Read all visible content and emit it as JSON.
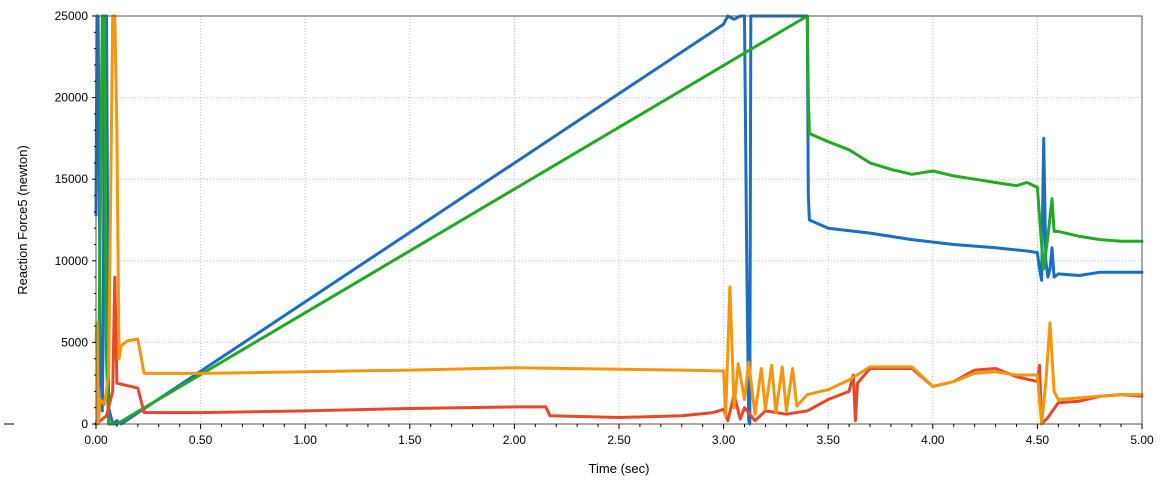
{
  "chart_data": {
    "type": "line",
    "xlabel": "Time (sec)",
    "ylabel": "Reaction Force5 (newton)",
    "xlim": [
      0,
      5
    ],
    "ylim": [
      0,
      25000
    ],
    "xticks": [
      "0.00",
      "0.50",
      "1.00",
      "1.50",
      "2.00",
      "2.50",
      "3.00",
      "3.50",
      "4.00",
      "4.50",
      "5.00"
    ],
    "yticks": [
      "0",
      "5000",
      "10000",
      "15000",
      "20000",
      "25000"
    ],
    "grid": true,
    "legend": "none",
    "series": [
      {
        "color": "#1a6fc4",
        "points": [
          [
            0.0,
            12800
          ],
          [
            0.005,
            25000
          ],
          [
            0.01,
            25000
          ],
          [
            0.015,
            17000
          ],
          [
            0.02,
            5000
          ],
          [
            0.03,
            800
          ],
          [
            0.035,
            6000
          ],
          [
            0.04,
            25000
          ],
          [
            0.05,
            25000
          ],
          [
            0.06,
            1000
          ],
          [
            0.08,
            0
          ],
          [
            0.1,
            200
          ],
          [
            0.12,
            0
          ],
          [
            3.0,
            24500
          ],
          [
            3.02,
            25000
          ],
          [
            3.05,
            24800
          ],
          [
            3.08,
            25000
          ],
          [
            3.1,
            25000
          ],
          [
            3.11,
            11000
          ],
          [
            3.12,
            200
          ],
          [
            3.125,
            0
          ],
          [
            3.13,
            25000
          ],
          [
            3.2,
            25000
          ],
          [
            3.3,
            25000
          ],
          [
            3.4,
            25000
          ],
          [
            3.405,
            14000
          ],
          [
            3.41,
            12500
          ],
          [
            3.5,
            12000
          ],
          [
            3.7,
            11700
          ],
          [
            3.9,
            11300
          ],
          [
            4.1,
            11000
          ],
          [
            4.3,
            10800
          ],
          [
            4.45,
            10600
          ],
          [
            4.5,
            10500
          ],
          [
            4.51,
            9500
          ],
          [
            4.52,
            8800
          ],
          [
            4.53,
            17500
          ],
          [
            4.54,
            10000
          ],
          [
            4.55,
            9000
          ],
          [
            4.56,
            9500
          ],
          [
            4.57,
            10800
          ],
          [
            4.58,
            9000
          ],
          [
            4.6,
            9200
          ],
          [
            4.7,
            9100
          ],
          [
            4.8,
            9300
          ],
          [
            4.9,
            9300
          ],
          [
            5.0,
            9300
          ]
        ]
      },
      {
        "color": "#22aa22",
        "points": [
          [
            0.0,
            0
          ],
          [
            0.01,
            500
          ],
          [
            0.02,
            12000
          ],
          [
            0.03,
            25000
          ],
          [
            0.04,
            25000
          ],
          [
            0.05,
            4000
          ],
          [
            0.06,
            0
          ],
          [
            0.1,
            0
          ],
          [
            3.4,
            25000
          ],
          [
            3.405,
            20000
          ],
          [
            3.41,
            17800
          ],
          [
            3.5,
            17300
          ],
          [
            3.6,
            16800
          ],
          [
            3.7,
            16000
          ],
          [
            3.8,
            15600
          ],
          [
            3.9,
            15300
          ],
          [
            4.0,
            15500
          ],
          [
            4.1,
            15200
          ],
          [
            4.2,
            15000
          ],
          [
            4.3,
            14800
          ],
          [
            4.4,
            14600
          ],
          [
            4.45,
            14800
          ],
          [
            4.5,
            14500
          ],
          [
            4.52,
            11000
          ],
          [
            4.53,
            9500
          ],
          [
            4.55,
            11500
          ],
          [
            4.57,
            13800
          ],
          [
            4.58,
            11800
          ],
          [
            4.6,
            11800
          ],
          [
            4.7,
            11500
          ],
          [
            4.8,
            11300
          ],
          [
            4.9,
            11200
          ],
          [
            5.0,
            11200
          ]
        ]
      },
      {
        "color": "#e8482a",
        "points": [
          [
            0.0,
            0
          ],
          [
            0.05,
            500
          ],
          [
            0.08,
            2000
          ],
          [
            0.09,
            9000
          ],
          [
            0.1,
            2500
          ],
          [
            0.2,
            2200
          ],
          [
            0.23,
            700
          ],
          [
            0.5,
            700
          ],
          [
            1.0,
            800
          ],
          [
            1.5,
            950
          ],
          [
            2.0,
            1050
          ],
          [
            2.15,
            1050
          ],
          [
            2.17,
            500
          ],
          [
            2.5,
            400
          ],
          [
            2.8,
            500
          ],
          [
            2.95,
            700
          ],
          [
            3.0,
            900
          ],
          [
            3.02,
            200
          ],
          [
            3.05,
            1800
          ],
          [
            3.08,
            300
          ],
          [
            3.1,
            1000
          ],
          [
            3.15,
            200
          ],
          [
            3.2,
            800
          ],
          [
            3.3,
            600
          ],
          [
            3.4,
            800
          ],
          [
            3.5,
            1500
          ],
          [
            3.6,
            2000
          ],
          [
            3.62,
            3000
          ],
          [
            3.63,
            200
          ],
          [
            3.64,
            2500
          ],
          [
            3.7,
            3400
          ],
          [
            3.9,
            3400
          ],
          [
            4.0,
            2300
          ],
          [
            4.1,
            2600
          ],
          [
            4.2,
            3300
          ],
          [
            4.3,
            3400
          ],
          [
            4.4,
            2900
          ],
          [
            4.5,
            2600
          ],
          [
            4.51,
            3600
          ],
          [
            4.52,
            0
          ],
          [
            4.55,
            400
          ],
          [
            4.6,
            1300
          ],
          [
            4.7,
            1400
          ],
          [
            4.8,
            1700
          ],
          [
            4.9,
            1800
          ],
          [
            5.0,
            1700
          ]
        ]
      },
      {
        "color": "#f5960e",
        "points": [
          [
            0.0,
            5000
          ],
          [
            0.005,
            6200
          ],
          [
            0.01,
            0
          ],
          [
            0.02,
            1500
          ],
          [
            0.04,
            1200
          ],
          [
            0.06,
            3000
          ],
          [
            0.08,
            25000
          ],
          [
            0.09,
            25000
          ],
          [
            0.1,
            18000
          ],
          [
            0.11,
            4000
          ],
          [
            0.12,
            4800
          ],
          [
            0.15,
            5100
          ],
          [
            0.2,
            5200
          ],
          [
            0.23,
            3100
          ],
          [
            0.5,
            3100
          ],
          [
            1.0,
            3200
          ],
          [
            1.5,
            3300
          ],
          [
            2.0,
            3450
          ],
          [
            2.5,
            3350
          ],
          [
            2.8,
            3300
          ],
          [
            3.0,
            3250
          ],
          [
            3.01,
            500
          ],
          [
            3.03,
            8400
          ],
          [
            3.05,
            1000
          ],
          [
            3.07,
            3700
          ],
          [
            3.1,
            1500
          ],
          [
            3.12,
            3800
          ],
          [
            3.15,
            600
          ],
          [
            3.18,
            3400
          ],
          [
            3.2,
            900
          ],
          [
            3.23,
            3600
          ],
          [
            3.25,
            700
          ],
          [
            3.28,
            3500
          ],
          [
            3.3,
            800
          ],
          [
            3.33,
            3400
          ],
          [
            3.35,
            1100
          ],
          [
            3.4,
            1800
          ],
          [
            3.5,
            2100
          ],
          [
            3.6,
            2700
          ],
          [
            3.7,
            3500
          ],
          [
            3.9,
            3500
          ],
          [
            4.0,
            2300
          ],
          [
            4.1,
            2600
          ],
          [
            4.2,
            3100
          ],
          [
            4.3,
            3200
          ],
          [
            4.4,
            3000
          ],
          [
            4.5,
            3000
          ],
          [
            4.52,
            0
          ],
          [
            4.54,
            2500
          ],
          [
            4.56,
            6200
          ],
          [
            4.58,
            2000
          ],
          [
            4.6,
            1500
          ],
          [
            4.7,
            1600
          ],
          [
            4.8,
            1700
          ],
          [
            4.9,
            1800
          ],
          [
            5.0,
            1800
          ]
        ]
      }
    ]
  }
}
